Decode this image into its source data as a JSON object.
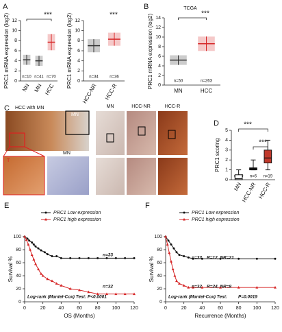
{
  "chart_data": [
    {
      "type": "dot",
      "panel": "A",
      "ylabel": "PRC1 mRNA expression (log2)",
      "categories": [
        "NN",
        "MN",
        "HCC"
      ],
      "values": [
        4.2,
        4.0,
        7.7
      ],
      "errors": [
        1.0,
        1.0,
        1.6
      ],
      "colors": [
        "#333333",
        "#333333",
        "#d62728"
      ],
      "n_labels": [
        "n=10",
        "n=41",
        "n=70"
      ],
      "significance": [
        "***"
      ],
      "ylim": [
        0,
        12
      ],
      "yticks": [
        0,
        2,
        4,
        6,
        8,
        10,
        12
      ]
    },
    {
      "type": "dot",
      "ylabel": "PRC1 mRNA expression (log2)",
      "categories": [
        "HCC-NR",
        "HCC-R"
      ],
      "values": [
        7.0,
        8.3
      ],
      "errors": [
        1.3,
        1.3
      ],
      "colors": [
        "#333333",
        "#d62728"
      ],
      "n_labels": [
        "n=34",
        "n=36"
      ],
      "significance": [
        "***"
      ],
      "ylim": [
        0,
        12
      ],
      "yticks": [
        0,
        2,
        4,
        6,
        8,
        10,
        12
      ]
    },
    {
      "type": "dot",
      "panel": "B",
      "title": "TCGA",
      "ylabel": "PRC1 mRNA expression (log2)",
      "categories": [
        "MN",
        "HCC"
      ],
      "values": [
        5.2,
        8.6
      ],
      "errors": [
        1.0,
        1.5
      ],
      "colors": [
        "#333333",
        "#d62728"
      ],
      "n_labels": [
        "n=50",
        "n=263"
      ],
      "significance": [
        "***"
      ],
      "ylim": [
        0,
        14
      ],
      "yticks": [
        0,
        2,
        4,
        6,
        8,
        10,
        12,
        14
      ]
    },
    {
      "type": "box",
      "panel": "D",
      "ylabel": "PRC1 scoring",
      "categories": [
        "MN",
        "HCC-NR",
        "HCC-R"
      ],
      "boxes": [
        {
          "min": 0,
          "q1": 0,
          "median": 0.1,
          "q3": 0.5,
          "max": 1
        },
        {
          "min": 1,
          "q1": 1,
          "median": 1.1,
          "q3": 1.2,
          "max": 2
        },
        {
          "min": 1,
          "q1": 1.7,
          "median": 2.2,
          "q3": 3,
          "max": 4
        }
      ],
      "colors": [
        "#ffffff",
        "#111111",
        "#c0392b"
      ],
      "n_labels": [
        "n=10",
        "n=6",
        "n=19"
      ],
      "significance": [
        "***",
        "***"
      ],
      "ylim": [
        0,
        5
      ],
      "yticks": [
        0,
        1,
        2,
        3,
        4,
        5
      ]
    },
    {
      "type": "survival",
      "panel": "E",
      "xlabel": "OS (Months)",
      "ylabel": "Survival %",
      "series": [
        {
          "name": "PRC1 Low expression",
          "color": "#111111",
          "marker": "circle",
          "x": [
            0,
            3,
            5,
            8,
            10,
            12,
            15,
            18,
            22,
            25,
            30,
            35,
            40,
            50,
            60,
            70,
            80,
            90,
            100,
            110,
            120
          ],
          "values": [
            100,
            97,
            94,
            91,
            88,
            85,
            82,
            79,
            76,
            73,
            70,
            70,
            67,
            67,
            67,
            67,
            67,
            67,
            67,
            67,
            67
          ]
        },
        {
          "name": "PRC1 high expression",
          "color": "#d62728",
          "marker": "triangle",
          "x": [
            0,
            2,
            4,
            6,
            8,
            10,
            12,
            15,
            18,
            20,
            25,
            30,
            35,
            40,
            50,
            60,
            70,
            80,
            90,
            100,
            110,
            120
          ],
          "values": [
            100,
            95,
            88,
            80,
            72,
            65,
            58,
            50,
            43,
            40,
            35,
            32,
            28,
            25,
            20,
            18,
            15,
            12,
            12,
            12,
            12,
            12
          ]
        }
      ],
      "annotations": [
        "n=33",
        "n=32",
        "Log-rank (Mantel-Cox) Test: P<0.0001"
      ],
      "xlim": [
        0,
        120
      ],
      "xticks": [
        0,
        20,
        40,
        60,
        80,
        100,
        120
      ],
      "ylim": [
        0,
        100
      ],
      "yticks": [
        0,
        20,
        40,
        60,
        80,
        100
      ]
    },
    {
      "type": "survival",
      "panel": "F",
      "xlabel": "Recurrence (Months)",
      "ylabel": "Survival %",
      "series": [
        {
          "name": "PRC1 Low expression",
          "color": "#111111",
          "marker": "circle",
          "x": [
            0,
            3,
            6,
            9,
            12,
            15,
            20,
            25,
            30,
            40,
            60,
            80,
            100,
            120
          ],
          "values": [
            100,
            94,
            88,
            82,
            76,
            72,
            70,
            68,
            66,
            66,
            66,
            66,
            66,
            66
          ]
        },
        {
          "name": "PRC1 high expression",
          "color": "#d62728",
          "marker": "triangle",
          "x": [
            0,
            2,
            4,
            6,
            8,
            10,
            12,
            15,
            20,
            25,
            30,
            40,
            60,
            80,
            100,
            120
          ],
          "values": [
            100,
            88,
            75,
            62,
            50,
            40,
            32,
            28,
            25,
            22,
            22,
            22,
            22,
            22,
            22,
            22
          ]
        }
      ],
      "annotations": [
        "n=33",
        "R=12, NR=21",
        "n=32",
        "R=24, NR=8",
        "Log-rank (Mantel-Cox) Test:",
        "P=0.0019"
      ],
      "xlim": [
        0,
        120
      ],
      "xticks": [
        0,
        20,
        40,
        60,
        80,
        100,
        120
      ],
      "ylim": [
        0,
        100
      ],
      "yticks": [
        0,
        20,
        40,
        60,
        80,
        100
      ]
    }
  ],
  "panel_c": {
    "panel": "C",
    "title": "HCC with MN",
    "inset_labels": [
      "MN",
      "T",
      "MN"
    ],
    "column_labels": [
      "MN",
      "HCC-NR",
      "HCC-R"
    ]
  }
}
